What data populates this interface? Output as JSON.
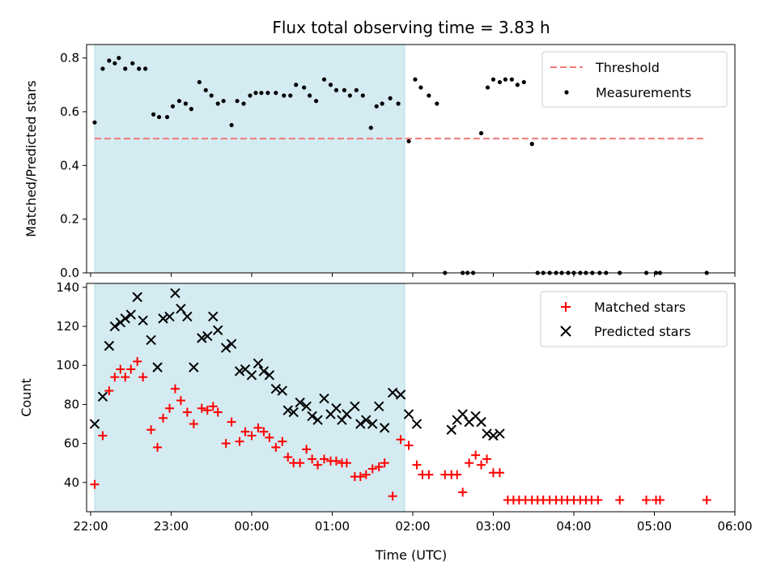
{
  "chart_data": {
    "type": "scatter",
    "title": "Flux total observing time = 3.83 h",
    "xlabel": "Time (UTC)",
    "x_ticks": [
      "22:00",
      "23:00",
      "00:00",
      "01:00",
      "02:00",
      "03:00",
      "04:00",
      "05:00",
      "06:00"
    ],
    "xlim": [
      -0.05,
      8.0
    ],
    "shaded_region": [
      0.05,
      3.9
    ],
    "shade_color": "#d4ebf1",
    "panels": [
      {
        "ylabel": "Matched/Predicted stars",
        "ylim": [
          0,
          0.85
        ],
        "y_ticks": [
          "0.0",
          "0.2",
          "0.4",
          "0.6",
          "0.8"
        ],
        "legend": "top-right",
        "threshold": {
          "name": "Threshold",
          "y": 0.5,
          "x_range": [
            0.05,
            7.65
          ],
          "color": "#f07a7a"
        },
        "series": [
          {
            "name": "Measurements",
            "marker": "dot",
            "color": "#000000",
            "points": [
              [
                0.05,
                0.56
              ],
              [
                0.15,
                0.76
              ],
              [
                0.23,
                0.79
              ],
              [
                0.3,
                0.78
              ],
              [
                0.35,
                0.8
              ],
              [
                0.43,
                0.76
              ],
              [
                0.52,
                0.78
              ],
              [
                0.6,
                0.76
              ],
              [
                0.68,
                0.76
              ],
              [
                0.78,
                0.59
              ],
              [
                0.85,
                0.58
              ],
              [
                0.95,
                0.58
              ],
              [
                1.02,
                0.62
              ],
              [
                1.1,
                0.64
              ],
              [
                1.18,
                0.63
              ],
              [
                1.25,
                0.61
              ],
              [
                1.35,
                0.71
              ],
              [
                1.43,
                0.68
              ],
              [
                1.5,
                0.66
              ],
              [
                1.58,
                0.63
              ],
              [
                1.65,
                0.64
              ],
              [
                1.75,
                0.55
              ],
              [
                1.82,
                0.64
              ],
              [
                1.9,
                0.63
              ],
              [
                1.98,
                0.66
              ],
              [
                2.05,
                0.67
              ],
              [
                2.12,
                0.67
              ],
              [
                2.2,
                0.67
              ],
              [
                2.3,
                0.67
              ],
              [
                2.4,
                0.66
              ],
              [
                2.48,
                0.66
              ],
              [
                2.55,
                0.7
              ],
              [
                2.65,
                0.69
              ],
              [
                2.72,
                0.66
              ],
              [
                2.8,
                0.64
              ],
              [
                2.9,
                0.72
              ],
              [
                2.98,
                0.7
              ],
              [
                3.05,
                0.68
              ],
              [
                3.15,
                0.68
              ],
              [
                3.22,
                0.66
              ],
              [
                3.3,
                0.68
              ],
              [
                3.38,
                0.66
              ],
              [
                3.48,
                0.54
              ],
              [
                3.55,
                0.62
              ],
              [
                3.62,
                0.63
              ],
              [
                3.72,
                0.65
              ],
              [
                3.82,
                0.63
              ],
              [
                3.95,
                0.49
              ],
              [
                4.03,
                0.72
              ],
              [
                4.1,
                0.69
              ],
              [
                4.2,
                0.66
              ],
              [
                4.3,
                0.63
              ],
              [
                4.4,
                0.0
              ],
              [
                4.62,
                0.0
              ],
              [
                4.68,
                0.0
              ],
              [
                4.75,
                0.0
              ],
              [
                4.85,
                0.52
              ],
              [
                4.93,
                0.69
              ],
              [
                5.0,
                0.72
              ],
              [
                5.08,
                0.71
              ],
              [
                5.15,
                0.72
              ],
              [
                5.23,
                0.72
              ],
              [
                5.3,
                0.7
              ],
              [
                5.38,
                0.71
              ],
              [
                5.48,
                0.48
              ],
              [
                5.55,
                0.0
              ],
              [
                5.62,
                0.0
              ],
              [
                5.7,
                0.0
              ],
              [
                5.78,
                0.0
              ],
              [
                5.85,
                0.0
              ],
              [
                5.93,
                0.0
              ],
              [
                6.0,
                0.0
              ],
              [
                6.08,
                0.0
              ],
              [
                6.15,
                0.0
              ],
              [
                6.23,
                0.0
              ],
              [
                6.32,
                0.0
              ],
              [
                6.4,
                0.0
              ],
              [
                6.57,
                0.0
              ],
              [
                6.9,
                0.0
              ],
              [
                7.02,
                0.0
              ],
              [
                7.07,
                0.0
              ],
              [
                7.65,
                0.0
              ]
            ]
          }
        ]
      },
      {
        "ylabel": "Count",
        "ylim": [
          25,
          142
        ],
        "y_ticks": [
          "40",
          "60",
          "80",
          "100",
          "120",
          "140"
        ],
        "legend": "top-right",
        "series": [
          {
            "name": "Matched stars",
            "marker": "plus",
            "color": "#ff0000",
            "points": [
              [
                0.05,
                39
              ],
              [
                0.15,
                64
              ],
              [
                0.23,
                87
              ],
              [
                0.3,
                94
              ],
              [
                0.37,
                98
              ],
              [
                0.43,
                94
              ],
              [
                0.5,
                98
              ],
              [
                0.58,
                102
              ],
              [
                0.65,
                94
              ],
              [
                0.75,
                67
              ],
              [
                0.83,
                58
              ],
              [
                0.9,
                73
              ],
              [
                0.98,
                78
              ],
              [
                1.05,
                88
              ],
              [
                1.12,
                82
              ],
              [
                1.2,
                76
              ],
              [
                1.28,
                70
              ],
              [
                1.38,
                78
              ],
              [
                1.45,
                77
              ],
              [
                1.52,
                79
              ],
              [
                1.58,
                76
              ],
              [
                1.68,
                60
              ],
              [
                1.75,
                71
              ],
              [
                1.85,
                61
              ],
              [
                1.92,
                66
              ],
              [
                2.0,
                64
              ],
              [
                2.08,
                68
              ],
              [
                2.15,
                66
              ],
              [
                2.22,
                63
              ],
              [
                2.3,
                58
              ],
              [
                2.38,
                61
              ],
              [
                2.45,
                53
              ],
              [
                2.52,
                50
              ],
              [
                2.6,
                50
              ],
              [
                2.68,
                57
              ],
              [
                2.75,
                52
              ],
              [
                2.82,
                49
              ],
              [
                2.9,
                52
              ],
              [
                2.98,
                51
              ],
              [
                3.05,
                51
              ],
              [
                3.12,
                50
              ],
              [
                3.18,
                50
              ],
              [
                3.28,
                43
              ],
              [
                3.35,
                43
              ],
              [
                3.42,
                44
              ],
              [
                3.5,
                47
              ],
              [
                3.58,
                48
              ],
              [
                3.65,
                50
              ],
              [
                3.75,
                33
              ],
              [
                3.85,
                62
              ],
              [
                3.95,
                59
              ],
              [
                4.05,
                49
              ],
              [
                4.12,
                44
              ],
              [
                4.2,
                44
              ],
              [
                4.4,
                44
              ],
              [
                4.48,
                44
              ],
              [
                4.55,
                44
              ],
              [
                4.62,
                35
              ],
              [
                4.7,
                50
              ],
              [
                4.78,
                54
              ],
              [
                4.85,
                49
              ],
              [
                4.92,
                52
              ],
              [
                5.0,
                45
              ],
              [
                5.08,
                45
              ],
              [
                5.18,
                31
              ],
              [
                5.25,
                31
              ],
              [
                5.32,
                31
              ],
              [
                5.4,
                31
              ],
              [
                5.48,
                31
              ],
              [
                5.55,
                31
              ],
              [
                5.62,
                31
              ],
              [
                5.7,
                31
              ],
              [
                5.78,
                31
              ],
              [
                5.85,
                31
              ],
              [
                5.92,
                31
              ],
              [
                6.0,
                31
              ],
              [
                6.08,
                31
              ],
              [
                6.15,
                31
              ],
              [
                6.22,
                31
              ],
              [
                6.3,
                31
              ],
              [
                6.57,
                31
              ],
              [
                6.9,
                31
              ],
              [
                7.02,
                31
              ],
              [
                7.07,
                31
              ],
              [
                7.65,
                31
              ]
            ]
          },
          {
            "name": "Predicted stars",
            "marker": "x",
            "color": "#000000",
            "points": [
              [
                0.05,
                70
              ],
              [
                0.15,
                84
              ],
              [
                0.23,
                110
              ],
              [
                0.3,
                120
              ],
              [
                0.37,
                122
              ],
              [
                0.43,
                124
              ],
              [
                0.5,
                126
              ],
              [
                0.58,
                135
              ],
              [
                0.65,
                123
              ],
              [
                0.75,
                113
              ],
              [
                0.83,
                99
              ],
              [
                0.9,
                124
              ],
              [
                0.98,
                125
              ],
              [
                1.05,
                137
              ],
              [
                1.12,
                129
              ],
              [
                1.2,
                125
              ],
              [
                1.28,
                99
              ],
              [
                1.38,
                114
              ],
              [
                1.45,
                115
              ],
              [
                1.52,
                125
              ],
              [
                1.58,
                118
              ],
              [
                1.68,
                109
              ],
              [
                1.75,
                111
              ],
              [
                1.85,
                97
              ],
              [
                1.92,
                98
              ],
              [
                2.0,
                95
              ],
              [
                2.08,
                101
              ],
              [
                2.15,
                97
              ],
              [
                2.22,
                95
              ],
              [
                2.3,
                88
              ],
              [
                2.38,
                87
              ],
              [
                2.45,
                77
              ],
              [
                2.52,
                76
              ],
              [
                2.6,
                81
              ],
              [
                2.68,
                79
              ],
              [
                2.75,
                74
              ],
              [
                2.82,
                72
              ],
              [
                2.9,
                83
              ],
              [
                2.98,
                75
              ],
              [
                3.05,
                78
              ],
              [
                3.12,
                72
              ],
              [
                3.18,
                75
              ],
              [
                3.28,
                79
              ],
              [
                3.35,
                70
              ],
              [
                3.42,
                72
              ],
              [
                3.5,
                70
              ],
              [
                3.58,
                79
              ],
              [
                3.65,
                68
              ],
              [
                3.75,
                86
              ],
              [
                3.85,
                85
              ],
              [
                3.95,
                75
              ],
              [
                4.05,
                70
              ],
              [
                4.48,
                67
              ],
              [
                4.55,
                72
              ],
              [
                4.62,
                75
              ],
              [
                4.7,
                71
              ],
              [
                4.78,
                74
              ],
              [
                4.85,
                71
              ],
              [
                4.92,
                65
              ],
              [
                5.0,
                64
              ],
              [
                5.08,
                65
              ]
            ]
          }
        ]
      }
    ]
  }
}
